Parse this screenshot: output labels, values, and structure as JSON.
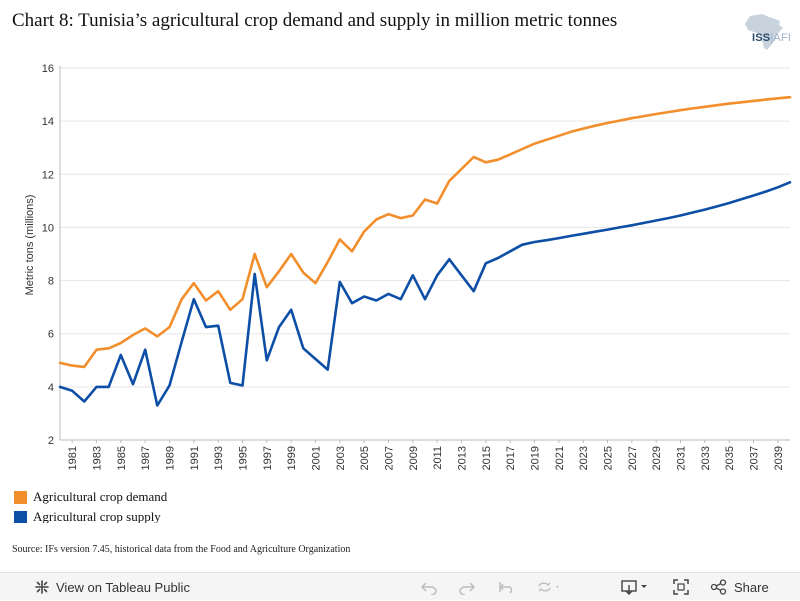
{
  "title": "Chart 8: Tunisia’s agricultural crop demand and supply in million metric tonnes",
  "logo": {
    "text_main": "ISS",
    "text_sep": "|",
    "text_sub": "AFI"
  },
  "source": "Source: IFs version 7.45, historical data from the Food and Agriculture Organization",
  "toolbar": {
    "view_label": "View on Tableau Public",
    "share_label": "Share"
  },
  "colors": {
    "demand": "#f28e2b",
    "supply": "#0d4ea6",
    "grid": "#e6e6e6",
    "axis": "#888888"
  },
  "chart_data": {
    "type": "line",
    "title": "Chart 8: Tunisia’s agricultural crop demand and supply in million metric tonnes",
    "xlabel": "",
    "ylabel": "Metric tons (millions)",
    "xlim": [
      1980,
      2040
    ],
    "ylim": [
      2,
      16
    ],
    "yticks": [
      2,
      4,
      6,
      8,
      10,
      12,
      14,
      16
    ],
    "xticks": [
      1981,
      1983,
      1985,
      1987,
      1989,
      1991,
      1993,
      1995,
      1997,
      1999,
      2001,
      2003,
      2005,
      2007,
      2009,
      2011,
      2013,
      2015,
      2017,
      2019,
      2021,
      2023,
      2025,
      2027,
      2029,
      2031,
      2033,
      2035,
      2037,
      2039
    ],
    "grid": true,
    "legend": "bottom-left",
    "x": [
      1980,
      1981,
      1982,
      1983,
      1984,
      1985,
      1986,
      1987,
      1988,
      1989,
      1990,
      1991,
      1992,
      1993,
      1994,
      1995,
      1996,
      1997,
      1998,
      1999,
      2000,
      2001,
      2002,
      2003,
      2004,
      2005,
      2006,
      2007,
      2008,
      2009,
      2010,
      2011,
      2012,
      2013,
      2014,
      2015,
      2016,
      2017,
      2018,
      2019,
      2020,
      2021,
      2022,
      2023,
      2024,
      2025,
      2026,
      2027,
      2028,
      2029,
      2030,
      2031,
      2032,
      2033,
      2034,
      2035,
      2036,
      2037,
      2038,
      2039,
      2040
    ],
    "series": [
      {
        "name": "Agricultural crop demand",
        "values": [
          4.9,
          4.8,
          4.75,
          5.4,
          5.45,
          5.65,
          5.95,
          6.2,
          5.9,
          6.25,
          7.3,
          7.9,
          7.25,
          7.6,
          6.9,
          7.3,
          9.0,
          7.75,
          8.35,
          9.0,
          8.3,
          7.9,
          8.7,
          9.55,
          9.1,
          9.85,
          10.3,
          10.5,
          10.35,
          10.45,
          11.05,
          10.9,
          11.75,
          12.2,
          12.65,
          12.45,
          12.55,
          12.75,
          12.95,
          13.15,
          13.3,
          13.45,
          13.6,
          13.72,
          13.83,
          13.93,
          14.02,
          14.11,
          14.19,
          14.27,
          14.34,
          14.41,
          14.48,
          14.54,
          14.6,
          14.66,
          14.71,
          14.76,
          14.81,
          14.86,
          14.9
        ]
      },
      {
        "name": "Agricultural crop supply",
        "values": [
          4.0,
          3.85,
          3.45,
          4.0,
          4.0,
          5.2,
          4.1,
          5.4,
          3.3,
          4.05,
          5.7,
          7.3,
          6.25,
          6.3,
          4.15,
          4.05,
          8.25,
          5.0,
          6.25,
          6.9,
          5.45,
          5.05,
          4.65,
          7.95,
          7.15,
          7.4,
          7.25,
          7.5,
          7.3,
          8.2,
          7.3,
          8.2,
          8.8,
          8.2,
          7.6,
          8.65,
          8.85,
          9.1,
          9.35,
          9.45,
          9.52,
          9.6,
          9.68,
          9.76,
          9.84,
          9.92,
          10.0,
          10.08,
          10.17,
          10.26,
          10.35,
          10.45,
          10.56,
          10.67,
          10.79,
          10.92,
          11.06,
          11.2,
          11.35,
          11.51,
          11.7
        ]
      }
    ]
  }
}
